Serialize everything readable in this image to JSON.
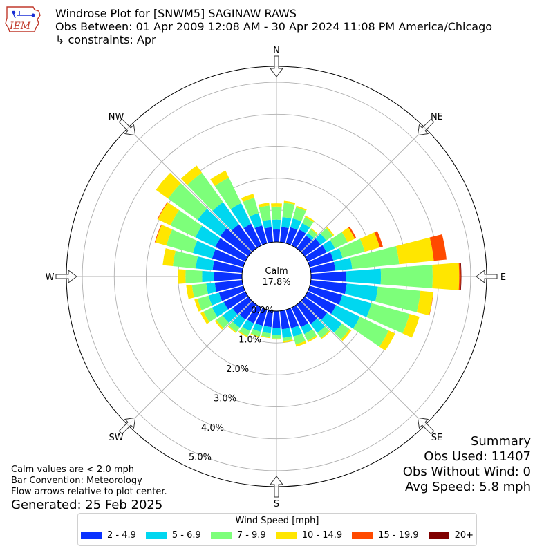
{
  "header": {
    "title_line1": "Windrose Plot for [SNWM5] SAGINAW RAWS",
    "title_line2": "Obs Between: 01 Apr 2009 12:08 AM - 30 Apr 2024 11:08 PM America/Chicago",
    "title_line3": "↳ constraints: Apr",
    "logo_text": "IEM"
  },
  "notes": {
    "line1": "Calm values are < 2.0 mph",
    "line2": "Bar Convention: Meteorology",
    "line3": "Flow arrows relative to plot center.",
    "generated": "Generated: 25 Feb 2025"
  },
  "summary": {
    "heading": "Summary",
    "obs_used": "Obs Used: 11407",
    "obs_without_wind": "Obs Without Wind: 0",
    "avg_speed": "Avg Speed: 5.8 mph"
  },
  "legend": {
    "title": "Wind Speed [mph]"
  },
  "chart_data": {
    "type": "windrose",
    "calm_label": "Calm",
    "calm_pct": "17.8%",
    "directions": [
      "N",
      "NE",
      "E",
      "SE",
      "S",
      "SW",
      "W",
      "NW"
    ],
    "radial_ticks": [
      "0.0%",
      "1.0%",
      "2.0%",
      "3.0%",
      "4.0%",
      "5.0%"
    ],
    "radial_max": 5.5,
    "bins": [
      {
        "label": "2 - 4.9",
        "color": "#0a32ff"
      },
      {
        "label": "5 - 6.9",
        "color": "#00d7f0"
      },
      {
        "label": "7 - 9.9",
        "color": "#7dff7a"
      },
      {
        "label": "10 - 14.9",
        "color": "#ffe600"
      },
      {
        "label": "15 - 19.9",
        "color": "#ff4a00"
      },
      {
        "label": "20+",
        "color": "#800000"
      }
    ],
    "sectors": [
      {
        "dir": 0,
        "values": [
          0.39,
          0.31,
          0.41,
          0.1,
          0.0,
          0.0
        ]
      },
      {
        "dir": 10,
        "values": [
          0.48,
          0.31,
          0.45,
          0.06,
          0.0,
          0.0
        ]
      },
      {
        "dir": 20,
        "values": [
          0.52,
          0.29,
          0.36,
          0.05,
          0.0,
          0.0
        ]
      },
      {
        "dir": 30,
        "values": [
          0.55,
          0.22,
          0.21,
          0.05,
          0.0,
          0.0
        ]
      },
      {
        "dir": 40,
        "values": [
          0.5,
          0.1,
          0.15,
          0.03,
          0.0,
          0.0
        ]
      },
      {
        "dir": 50,
        "values": [
          0.62,
          0.22,
          0.25,
          0.05,
          0.0,
          0.0
        ]
      },
      {
        "dir": 60,
        "values": [
          0.66,
          0.29,
          0.44,
          0.25,
          0.05,
          0.0
        ]
      },
      {
        "dir": 70,
        "values": [
          0.77,
          0.3,
          0.72,
          0.49,
          0.1,
          0.0
        ]
      },
      {
        "dir": 80,
        "values": [
          0.77,
          0.53,
          1.48,
          1.09,
          0.4,
          0.0
        ]
      },
      {
        "dir": 90,
        "values": [
          1.1,
          1.09,
          1.62,
          0.83,
          0.05,
          0.02
        ]
      },
      {
        "dir": 100,
        "values": [
          1.13,
          0.98,
          1.34,
          0.4,
          0.01,
          0.0
        ]
      },
      {
        "dir": 110,
        "values": [
          1.06,
          0.95,
          1.24,
          0.32,
          0.0,
          0.0
        ]
      },
      {
        "dir": 120,
        "values": [
          0.99,
          0.83,
          1.0,
          0.22,
          0.0,
          0.0
        ]
      },
      {
        "dir": 130,
        "values": [
          0.87,
          0.57,
          0.3,
          0.07,
          0.0,
          0.0
        ]
      },
      {
        "dir": 140,
        "values": [
          0.75,
          0.35,
          0.19,
          0.04,
          0.0,
          0.0
        ]
      },
      {
        "dir": 150,
        "values": [
          0.68,
          0.24,
          0.23,
          0.05,
          0.0,
          0.0
        ]
      },
      {
        "dir": 160,
        "values": [
          0.6,
          0.27,
          0.26,
          0.07,
          0.0,
          0.0
        ]
      },
      {
        "dir": 170,
        "values": [
          0.58,
          0.27,
          0.1,
          0.05,
          0.0,
          0.0
        ]
      },
      {
        "dir": 180,
        "values": [
          0.53,
          0.21,
          0.12,
          0.03,
          0.0,
          0.0
        ]
      },
      {
        "dir": 190,
        "values": [
          0.51,
          0.2,
          0.12,
          0.03,
          0.0,
          0.0
        ]
      },
      {
        "dir": 200,
        "values": [
          0.52,
          0.2,
          0.15,
          0.03,
          0.0,
          0.0
        ]
      },
      {
        "dir": 210,
        "values": [
          0.55,
          0.27,
          0.17,
          0.04,
          0.0,
          0.0
        ]
      },
      {
        "dir": 220,
        "values": [
          0.58,
          0.31,
          0.17,
          0.04,
          0.0,
          0.0
        ]
      },
      {
        "dir": 230,
        "values": [
          0.62,
          0.38,
          0.24,
          0.06,
          0.0,
          0.0
        ]
      },
      {
        "dir": 240,
        "values": [
          0.75,
          0.41,
          0.3,
          0.1,
          0.0,
          0.0
        ]
      },
      {
        "dir": 250,
        "values": [
          0.79,
          0.34,
          0.36,
          0.1,
          0.0,
          0.0
        ]
      },
      {
        "dir": 260,
        "values": [
          0.86,
          0.27,
          0.45,
          0.18,
          0.0,
          0.0
        ]
      },
      {
        "dir": 270,
        "values": [
          0.87,
          0.38,
          0.52,
          0.23,
          0.0,
          0.0
        ]
      },
      {
        "dir": 280,
        "values": [
          0.93,
          0.53,
          0.72,
          0.32,
          0.0,
          0.0
        ]
      },
      {
        "dir": 290,
        "values": [
          1.01,
          0.63,
          0.86,
          0.36,
          0.02,
          0.0
        ]
      },
      {
        "dir": 300,
        "values": [
          1.05,
          0.69,
          0.87,
          0.43,
          0.02,
          0.0
        ]
      },
      {
        "dir": 310,
        "values": [
          1.09,
          0.87,
          1.14,
          0.47,
          0.0,
          0.0
        ]
      },
      {
        "dir": 320,
        "values": [
          0.93,
          0.86,
          1.13,
          0.28,
          0.0,
          0.0
        ]
      },
      {
        "dir": 330,
        "values": [
          0.75,
          0.72,
          0.88,
          0.25,
          0.0,
          0.0
        ]
      },
      {
        "dir": 340,
        "values": [
          0.58,
          0.4,
          0.5,
          0.13,
          0.0,
          0.0
        ]
      },
      {
        "dir": 350,
        "values": [
          0.47,
          0.24,
          0.44,
          0.09,
          0.0,
          0.0
        ]
      }
    ]
  }
}
